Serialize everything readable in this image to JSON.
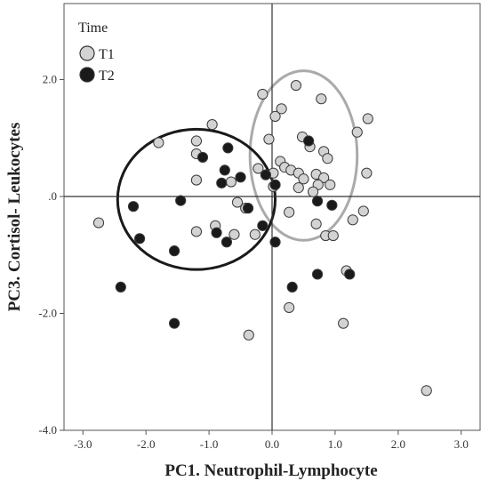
{
  "chart_data": {
    "type": "scatter",
    "xlabel": "PC1. Neutrophil-Lymphocyte",
    "ylabel": "PC3. Cortisol- Leukocytes",
    "xlim": [
      -3.3,
      3.3
    ],
    "ylim": [
      -4.0,
      3.3
    ],
    "x_ticks": [
      -3.0,
      -2.0,
      -1.0,
      0.0,
      1.0,
      2.0,
      3.0
    ],
    "x_tick_labels": [
      "-3.0",
      "-2.0",
      "-1.0",
      "0.0",
      "1.0",
      "2.0",
      "3.0"
    ],
    "y_ticks": [
      -4.0,
      -2.0,
      0.0,
      2.0
    ],
    "y_tick_labels": [
      "-4.0",
      "-2.0",
      ".0",
      "2.0"
    ],
    "reference_lines": {
      "x": 0,
      "y": 0
    },
    "grid": false,
    "legend": {
      "title": "Time",
      "position": "top-left",
      "entries": [
        "T1",
        "T2"
      ]
    },
    "series": [
      {
        "name": "T1",
        "marker_color": "#d3d3d3",
        "points": [
          [
            0.38,
            1.9
          ],
          [
            -0.15,
            1.75
          ],
          [
            0.15,
            1.5
          ],
          [
            0.78,
            1.67
          ],
          [
            0.05,
            1.37
          ],
          [
            1.52,
            1.33
          ],
          [
            -0.95,
            1.23
          ],
          [
            0.48,
            1.02
          ],
          [
            1.35,
            1.1
          ],
          [
            -0.05,
            0.98
          ],
          [
            -1.2,
            0.95
          ],
          [
            -1.8,
            0.92
          ],
          [
            0.6,
            0.85
          ],
          [
            0.82,
            0.77
          ],
          [
            -1.2,
            0.73
          ],
          [
            0.88,
            0.65
          ],
          [
            0.13,
            0.6
          ],
          [
            0.2,
            0.5
          ],
          [
            0.3,
            0.45
          ],
          [
            0.42,
            0.4
          ],
          [
            -0.22,
            0.48
          ],
          [
            0.02,
            0.4
          ],
          [
            0.7,
            0.38
          ],
          [
            1.5,
            0.4
          ],
          [
            0.82,
            0.32
          ],
          [
            0.5,
            0.3
          ],
          [
            0.73,
            0.2
          ],
          [
            0.92,
            0.2
          ],
          [
            -1.2,
            0.28
          ],
          [
            -0.65,
            0.25
          ],
          [
            0.02,
            0.17
          ],
          [
            0.42,
            0.15
          ],
          [
            0.65,
            0.08
          ],
          [
            -0.55,
            -0.1
          ],
          [
            -0.42,
            -0.2
          ],
          [
            1.45,
            -0.25
          ],
          [
            0.27,
            -0.27
          ],
          [
            1.28,
            -0.4
          ],
          [
            -0.9,
            -0.5
          ],
          [
            0.7,
            -0.47
          ],
          [
            -1.2,
            -0.6
          ],
          [
            -0.6,
            -0.65
          ],
          [
            -0.27,
            -0.65
          ],
          [
            0.85,
            -0.67
          ],
          [
            0.97,
            -0.67
          ],
          [
            -2.75,
            -0.45
          ],
          [
            1.18,
            -1.27
          ],
          [
            0.27,
            -1.9
          ],
          [
            1.13,
            -2.17
          ],
          [
            -0.37,
            -2.37
          ],
          [
            2.45,
            -3.32
          ]
        ]
      },
      {
        "name": "T2",
        "marker_color": "#1a1a1a",
        "points": [
          [
            0.58,
            0.95
          ],
          [
            -0.7,
            0.83
          ],
          [
            -1.1,
            0.67
          ],
          [
            -0.75,
            0.45
          ],
          [
            -0.5,
            0.33
          ],
          [
            -0.8,
            0.23
          ],
          [
            -0.1,
            0.37
          ],
          [
            0.05,
            0.2
          ],
          [
            0.72,
            -0.08
          ],
          [
            0.95,
            -0.15
          ],
          [
            -1.45,
            -0.07
          ],
          [
            -2.2,
            -0.17
          ],
          [
            -0.38,
            -0.2
          ],
          [
            -0.15,
            -0.5
          ],
          [
            -2.1,
            -0.72
          ],
          [
            -0.88,
            -0.62
          ],
          [
            -0.72,
            -0.78
          ],
          [
            0.05,
            -0.78
          ],
          [
            -1.55,
            -0.93
          ],
          [
            -2.4,
            -1.55
          ],
          [
            0.32,
            -1.55
          ],
          [
            0.72,
            -1.33
          ],
          [
            1.23,
            -1.33
          ],
          [
            -1.55,
            -2.17
          ]
        ]
      }
    ],
    "ellipses": [
      {
        "series": "T1",
        "cx": 0.5,
        "cy": 0.7,
        "rx": 0.85,
        "ry": 1.45,
        "stroke": "#aaaaaa"
      },
      {
        "series": "T2",
        "cx": -1.2,
        "cy": -0.05,
        "rx": 1.25,
        "ry": 1.2,
        "stroke": "#1a1a1a"
      }
    ]
  }
}
